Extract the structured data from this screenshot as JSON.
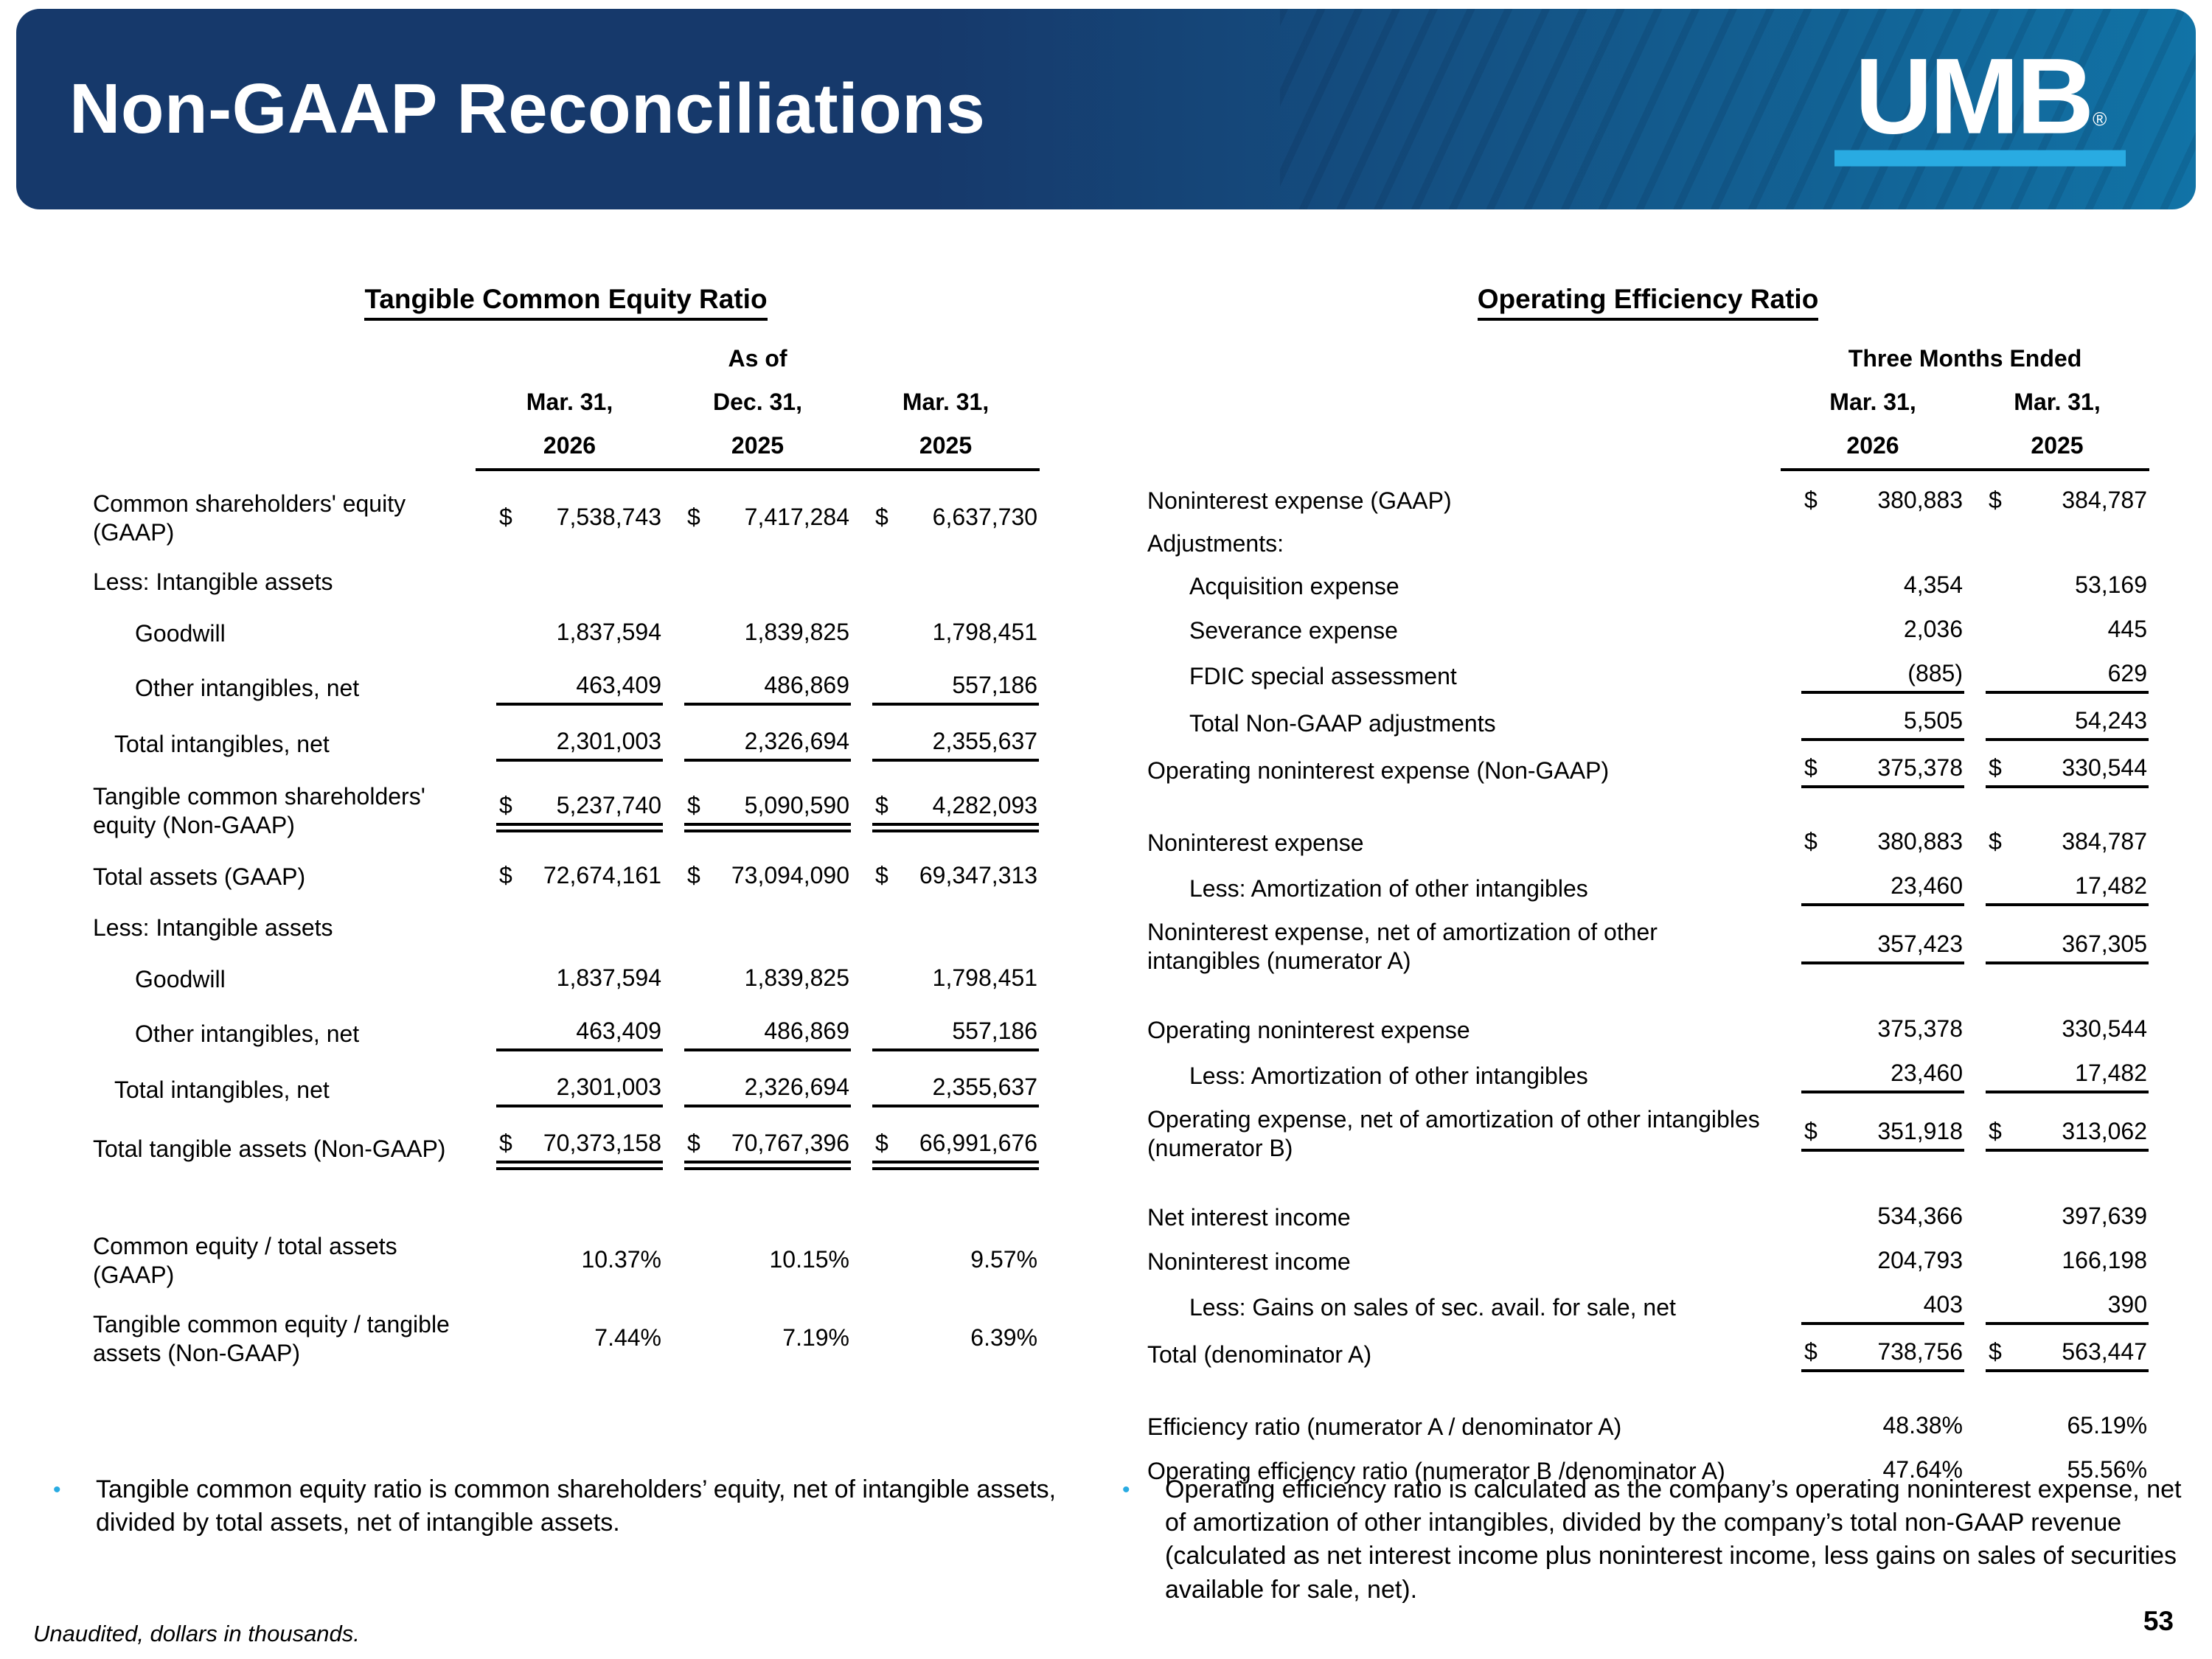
{
  "header": {
    "title": "Non-GAAP Reconciliations",
    "logo_text": "UMB",
    "logo_reg": "®"
  },
  "colors": {
    "banner_left": "#16396B",
    "banner_right": "#1173A6",
    "accent_cyan": "#29ABE2"
  },
  "icons": {
    "bullet": "•"
  },
  "left_table": {
    "title": "Tangible Common Equity Ratio",
    "span_header": "As of",
    "col_headers": [
      [
        "Mar. 31,",
        "2026"
      ],
      [
        "Dec. 31,",
        "2025"
      ],
      [
        "Mar. 31,",
        "2025"
      ]
    ],
    "rows": [
      {
        "label": "Common shareholders' equity (GAAP)",
        "dollar": true,
        "values": [
          "7,538,743",
          "7,417,284",
          "6,637,730"
        ]
      },
      {
        "label": "Less: Intangible assets",
        "values": []
      },
      {
        "label": "Goodwill",
        "indent": 1,
        "values": [
          "1,837,594",
          "1,839,825",
          "1,798,451"
        ]
      },
      {
        "label": "Other intangibles, net",
        "indent": 1,
        "values": [
          "463,409",
          "486,869",
          "557,186"
        ],
        "rule_below": "single"
      },
      {
        "label": "Total intangibles, net",
        "indent": 0.5,
        "values": [
          "2,301,003",
          "2,326,694",
          "2,355,637"
        ],
        "rule_below": "single"
      },
      {
        "label": "Tangible common shareholders' equity  (Non-GAAP)",
        "dollar": true,
        "values": [
          "5,237,740",
          "5,090,590",
          "4,282,093"
        ],
        "rule_below": "double"
      },
      {
        "label": "Total assets (GAAP)",
        "dollar": true,
        "values": [
          "72,674,161",
          "73,094,090",
          "69,347,313"
        ]
      },
      {
        "label": "Less: Intangible assets",
        "values": []
      },
      {
        "label": "Goodwill",
        "indent": 1,
        "values": [
          "1,837,594",
          "1,839,825",
          "1,798,451"
        ]
      },
      {
        "label": "Other intangibles, net",
        "indent": 1,
        "values": [
          "463,409",
          "486,869",
          "557,186"
        ],
        "rule_below": "single"
      },
      {
        "label": "Total intangibles, net",
        "indent": 0.5,
        "values": [
          "2,301,003",
          "2,326,694",
          "2,355,637"
        ],
        "rule_below": "single"
      },
      {
        "label": "Total tangible assets (Non-GAAP)",
        "dollar": true,
        "values": [
          "70,373,158",
          "70,767,396",
          "66,991,676"
        ],
        "rule_below": "double"
      },
      {
        "label": "Common equity / total assets (GAAP)",
        "gap_before": true,
        "values": [
          "10.37%",
          "10.15%",
          "9.57%"
        ]
      },
      {
        "label": "Tangible common equity / tangible assets (Non-GAAP)",
        "values": [
          "7.44%",
          "7.19%",
          "6.39%"
        ]
      }
    ]
  },
  "right_table": {
    "title": "Operating Efficiency Ratio",
    "span_header": "Three Months Ended",
    "col_headers": [
      [
        "Mar. 31,",
        "2026"
      ],
      [
        "Mar. 31,",
        "2025"
      ]
    ],
    "rows": [
      {
        "label": "Noninterest expense (GAAP)",
        "dollar": true,
        "values": [
          "380,883",
          "384,787"
        ]
      },
      {
        "label": "Adjustments:",
        "values": []
      },
      {
        "label": "Acquisition expense",
        "indent": 1,
        "values": [
          "4,354",
          "53,169"
        ]
      },
      {
        "label": "Severance expense",
        "indent": 1,
        "values": [
          "2,036",
          "445"
        ]
      },
      {
        "label": "FDIC special assessment",
        "indent": 1,
        "values": [
          "(885)",
          "629"
        ],
        "rule_below": "single"
      },
      {
        "label": "Total Non-GAAP adjustments",
        "indent": 1,
        "values": [
          "5,505",
          "54,243"
        ],
        "rule_below": "single"
      },
      {
        "label": "Operating noninterest expense (Non-GAAP)",
        "dollar": true,
        "values": [
          "375,378",
          "330,544"
        ],
        "rule_below": "single"
      },
      {
        "label": "Noninterest expense",
        "dollar": true,
        "gap_before": true,
        "values": [
          "380,883",
          "384,787"
        ]
      },
      {
        "label": "Less: Amortization of other intangibles",
        "indent": 1,
        "values": [
          "23,460",
          "17,482"
        ],
        "rule_below": "single"
      },
      {
        "label": "Noninterest expense, net of amortization of other intangibles (numerator A)",
        "values": [
          "357,423",
          "367,305"
        ],
        "rule_below": "single"
      },
      {
        "label": "Operating noninterest expense",
        "gap_before": true,
        "values": [
          "375,378",
          "330,544"
        ]
      },
      {
        "label": "Less: Amortization of other intangibles",
        "indent": 1,
        "values": [
          "23,460",
          "17,482"
        ],
        "rule_below": "single"
      },
      {
        "label": "Operating expense, net of amortization of other intangibles (numerator B)",
        "dollar": true,
        "values": [
          "351,918",
          "313,062"
        ],
        "rule_below": "single"
      },
      {
        "label": "Net interest income",
        "gap_before": true,
        "values": [
          "534,366",
          "397,639"
        ]
      },
      {
        "label": "Noninterest income",
        "values": [
          "204,793",
          "166,198"
        ]
      },
      {
        "label": "Less: Gains on sales of sec. avail. for sale, net",
        "indent": 1,
        "values": [
          "403",
          "390"
        ],
        "rule_below": "single"
      },
      {
        "label": "Total (denominator A)",
        "dollar": true,
        "values": [
          "738,756",
          "563,447"
        ],
        "rule_below": "single"
      },
      {
        "label": "Efficiency ratio (numerator A / denominator A)",
        "gap_before": true,
        "values": [
          "48.38%",
          "65.19%"
        ]
      },
      {
        "label": "Operating efficiency ratio (numerator B /denominator A)",
        "values": [
          "47.64%",
          "55.56%"
        ]
      }
    ]
  },
  "footnotes": {
    "left": "Tangible common equity ratio is common shareholders’ equity, net of intangible assets, divided by total assets, net of intangible assets.",
    "right": "Operating efficiency ratio is calculated as the company’s operating noninterest expense, net of amortization of other intangibles, divided by the company’s total non-GAAP revenue (calculated as net interest income plus noninterest income, less gains on sales of securities available for sale, net)."
  },
  "footer": {
    "note": "Unaudited, dollars in thousands.",
    "page_number": "53"
  }
}
